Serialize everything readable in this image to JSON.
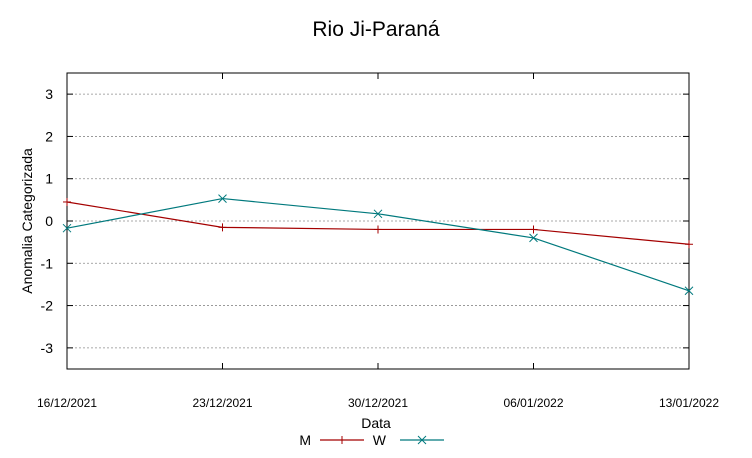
{
  "chart_data": {
    "type": "line",
    "title": "Rio Ji-Paraná",
    "xlabel": "Data",
    "ylabel": "Anomalia Categorizada",
    "categories": [
      "16/12/2021",
      "23/12/2021",
      "30/12/2021",
      "06/01/2022",
      "13/01/2022"
    ],
    "yticks": [
      -3,
      -2,
      -1,
      0,
      1,
      2,
      3
    ],
    "ylim": [
      -3.5,
      3.5
    ],
    "grid": true,
    "legend_position": "bottom-center",
    "series": [
      {
        "name": "M",
        "color": "#a40000",
        "marker": "plus",
        "values": [
          0.45,
          -0.15,
          -0.2,
          -0.2,
          -0.55
        ]
      },
      {
        "name": "W",
        "color": "#00797d",
        "marker": "cross",
        "values": [
          -0.17,
          0.53,
          0.17,
          -0.4,
          -1.65
        ]
      }
    ]
  }
}
